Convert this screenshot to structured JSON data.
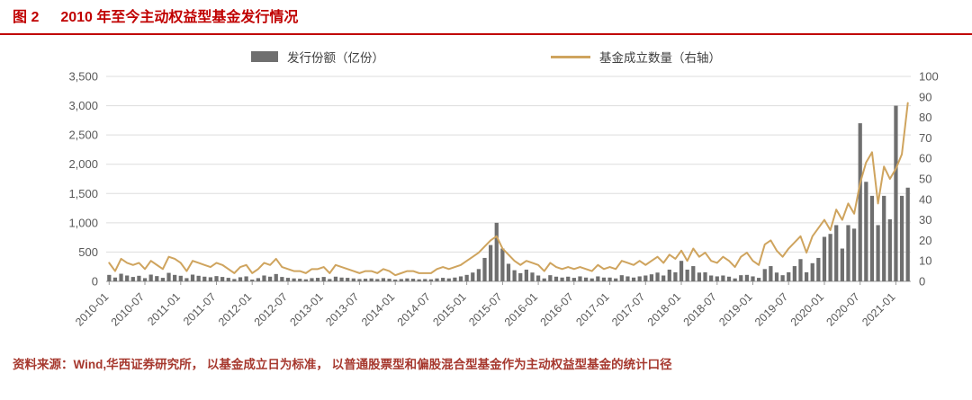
{
  "header": {
    "figure_label": "图 2",
    "title": "2010 年至今主动权益型基金发行情况"
  },
  "legend": [
    {
      "label": "发行份额（亿份）",
      "swatch": "bar"
    },
    {
      "label": "基金成立数量（右轴）",
      "swatch": "line"
    }
  ],
  "footer": {
    "source": "资料来源：Wind,华西证券研究所， 以基金成立日为标准， 以普通股票型和偏股混合型基金作为主动权益型基金的统计口径"
  },
  "colors": {
    "title_red": "#C00000",
    "footer_red": "#A6382E",
    "bar_gray": "#6F6F6F",
    "line_tan": "#CFA45E",
    "axis_text": "#595959",
    "grid": "#DDDDDD",
    "axis_line": "#9A9A9A"
  },
  "chart_data": {
    "type": "bar+line",
    "title": "2010 年至今主动权益型基金发行情况",
    "x": [
      "2010-01",
      "2010-02",
      "2010-03",
      "2010-04",
      "2010-05",
      "2010-06",
      "2010-07",
      "2010-08",
      "2010-09",
      "2010-10",
      "2010-11",
      "2010-12",
      "2011-01",
      "2011-02",
      "2011-03",
      "2011-04",
      "2011-05",
      "2011-06",
      "2011-07",
      "2011-08",
      "2011-09",
      "2011-10",
      "2011-11",
      "2011-12",
      "2012-01",
      "2012-02",
      "2012-03",
      "2012-04",
      "2012-05",
      "2012-06",
      "2012-07",
      "2012-08",
      "2012-09",
      "2012-10",
      "2012-11",
      "2012-12",
      "2013-01",
      "2013-02",
      "2013-03",
      "2013-04",
      "2013-05",
      "2013-06",
      "2013-07",
      "2013-08",
      "2013-09",
      "2013-10",
      "2013-11",
      "2013-12",
      "2014-01",
      "2014-02",
      "2014-03",
      "2014-04",
      "2014-05",
      "2014-06",
      "2014-07",
      "2014-08",
      "2014-09",
      "2014-10",
      "2014-11",
      "2014-12",
      "2015-01",
      "2015-02",
      "2015-03",
      "2015-04",
      "2015-05",
      "2015-06",
      "2015-07",
      "2015-08",
      "2015-09",
      "2015-10",
      "2015-11",
      "2015-12",
      "2016-01",
      "2016-02",
      "2016-03",
      "2016-04",
      "2016-05",
      "2016-06",
      "2016-07",
      "2016-08",
      "2016-09",
      "2016-10",
      "2016-11",
      "2016-12",
      "2017-01",
      "2017-02",
      "2017-03",
      "2017-04",
      "2017-05",
      "2017-06",
      "2017-07",
      "2017-08",
      "2017-09",
      "2017-10",
      "2017-11",
      "2017-12",
      "2018-01",
      "2018-02",
      "2018-03",
      "2018-04",
      "2018-05",
      "2018-06",
      "2018-07",
      "2018-08",
      "2018-09",
      "2018-10",
      "2018-11",
      "2018-12",
      "2019-01",
      "2019-02",
      "2019-03",
      "2019-04",
      "2019-05",
      "2019-06",
      "2019-07",
      "2019-08",
      "2019-09",
      "2019-10",
      "2019-11",
      "2019-12",
      "2020-01",
      "2020-02",
      "2020-03",
      "2020-04",
      "2020-05",
      "2020-06",
      "2020-07",
      "2020-08",
      "2020-09",
      "2020-10",
      "2020-11",
      "2020-12",
      "2021-01",
      "2021-02",
      "2021-03"
    ],
    "series": [
      {
        "name": "发行份额（亿份）",
        "type": "bar",
        "axis": "left",
        "color": "#6F6F6F",
        "values": [
          110,
          65,
          130,
          100,
          75,
          95,
          55,
          115,
          90,
          60,
          145,
          110,
          95,
          55,
          115,
          95,
          80,
          70,
          90,
          75,
          60,
          40,
          70,
          85,
          30,
          55,
          100,
          80,
          125,
          75,
          60,
          50,
          45,
          35,
          55,
          60,
          75,
          40,
          80,
          65,
          60,
          50,
          40,
          45,
          50,
          40,
          55,
          45,
          30,
          40,
          50,
          45,
          35,
          40,
          35,
          50,
          60,
          50,
          65,
          85,
          110,
          150,
          210,
          400,
          620,
          1000,
          560,
          300,
          190,
          140,
          200,
          150,
          100,
          50,
          105,
          80,
          65,
          80,
          60,
          85,
          65,
          50,
          85,
          65,
          65,
          50,
          105,
          85,
          65,
          85,
          100,
          120,
          150,
          100,
          200,
          155,
          350,
          200,
          260,
          150,
          155,
          100,
          85,
          100,
          80,
          50,
          105,
          110,
          85,
          60,
          210,
          260,
          150,
          105,
          155,
          260,
          380,
          155,
          310,
          400,
          760,
          810,
          960,
          560,
          960,
          900,
          2700,
          1700,
          1460,
          960,
          1460,
          1060,
          3000,
          1460,
          1600
        ]
      },
      {
        "name": "基金成立数量（右轴）",
        "type": "line",
        "axis": "right",
        "color": "#CFA45E",
        "values": [
          9,
          5,
          11,
          9,
          8,
          9,
          6,
          10,
          8,
          6,
          12,
          11,
          9,
          5,
          10,
          9,
          8,
          7,
          9,
          8,
          6,
          4,
          7,
          8,
          4,
          6,
          9,
          8,
          11,
          7,
          6,
          5,
          5,
          4,
          6,
          6,
          7,
          4,
          8,
          7,
          6,
          5,
          4,
          5,
          5,
          4,
          6,
          5,
          3,
          4,
          5,
          5,
          4,
          4,
          4,
          6,
          7,
          6,
          7,
          8,
          10,
          12,
          14,
          17,
          20,
          22,
          16,
          13,
          10,
          8,
          10,
          9,
          8,
          5,
          9,
          7,
          6,
          7,
          6,
          7,
          6,
          5,
          8,
          6,
          7,
          6,
          10,
          9,
          8,
          10,
          8,
          10,
          12,
          9,
          13,
          11,
          15,
          10,
          16,
          12,
          14,
          10,
          9,
          12,
          10,
          7,
          12,
          14,
          10,
          8,
          18,
          20,
          15,
          12,
          16,
          19,
          22,
          14,
          22,
          26,
          30,
          25,
          35,
          30,
          38,
          33,
          48,
          58,
          63,
          38,
          56,
          50,
          55,
          62,
          87
        ]
      }
    ],
    "left_axis": {
      "min": 0,
      "max": 3500,
      "step": 500,
      "tick_labels": [
        "0",
        "500",
        "1,000",
        "1,500",
        "2,000",
        "2,500",
        "3,000",
        "3,500"
      ]
    },
    "right_axis": {
      "min": 0,
      "max": 100,
      "step": 10,
      "tick_labels": [
        "0",
        "10",
        "20",
        "30",
        "40",
        "50",
        "60",
        "70",
        "80",
        "90",
        "100"
      ]
    },
    "x_ticks": [
      "2010-01",
      "2010-07",
      "2011-01",
      "2011-07",
      "2012-01",
      "2012-07",
      "2013-01",
      "2013-07",
      "2014-01",
      "2014-07",
      "2015-01",
      "2015-07",
      "2016-01",
      "2016-07",
      "2017-01",
      "2017-07",
      "2018-01",
      "2018-07",
      "2019-01",
      "2019-07",
      "2020-01",
      "2020-07",
      "2021-01"
    ],
    "grid": "horizontal",
    "legend_position": "top"
  }
}
